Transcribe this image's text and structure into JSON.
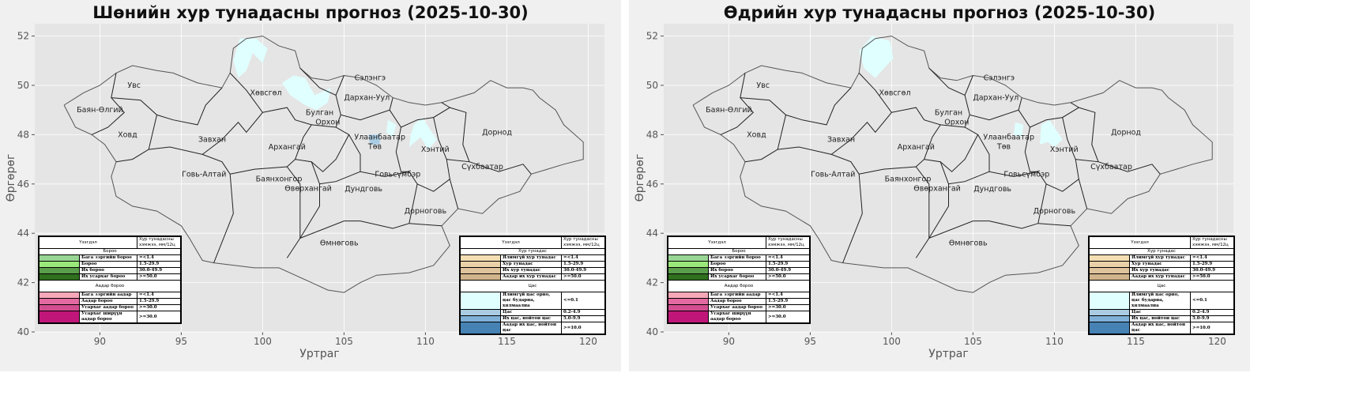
{
  "panels": [
    {
      "title": "Шөнийн хур тунадасны прогноз (2025-10-30)",
      "snow": [
        [
          [
            98.2,
            51.0
          ],
          [
            98.6,
            51.9
          ],
          [
            99.6,
            51.9
          ],
          [
            100.3,
            51.5
          ],
          [
            100.0,
            50.9
          ],
          [
            99.4,
            51.3
          ],
          [
            99.0,
            50.6
          ],
          [
            98.5,
            50.3
          ]
        ],
        [
          [
            101.2,
            50.1
          ],
          [
            101.9,
            50.4
          ],
          [
            102.6,
            50.3
          ],
          [
            103.2,
            49.6
          ],
          [
            104.2,
            49.9
          ],
          [
            104.0,
            49.3
          ],
          [
            103.3,
            49.0
          ],
          [
            102.6,
            49.2
          ],
          [
            101.7,
            49.6
          ]
        ],
        [
          [
            107.7,
            48.6
          ],
          [
            108.2,
            48.4
          ],
          [
            108.0,
            47.9
          ],
          [
            107.6,
            48.1
          ]
        ],
        [
          [
            109.3,
            48.4
          ],
          [
            109.8,
            48.7
          ],
          [
            110.7,
            47.8
          ],
          [
            110.2,
            47.4
          ],
          [
            109.7,
            47.9
          ],
          [
            109.0,
            47.5
          ],
          [
            109.1,
            48.0
          ]
        ]
      ],
      "ub": [
        [
          106.5,
          48.0
        ],
        [
          107.2,
          48.0
        ],
        [
          107.2,
          47.6
        ],
        [
          106.6,
          47.6
        ]
      ]
    },
    {
      "title": "Өдрийн хур тунадасны прогноз (2025-10-30)",
      "snow": [
        [
          [
            98.0,
            51.4
          ],
          [
            98.8,
            52.0
          ],
          [
            99.9,
            51.8
          ],
          [
            100.1,
            51.1
          ],
          [
            99.0,
            50.3
          ],
          [
            98.3,
            50.7
          ]
        ],
        [
          [
            107.6,
            48.5
          ],
          [
            108.1,
            48.4
          ],
          [
            108.0,
            47.9
          ],
          [
            107.5,
            48.0
          ]
        ],
        [
          [
            109.2,
            48.4
          ],
          [
            109.7,
            48.6
          ],
          [
            110.5,
            47.8
          ],
          [
            110.0,
            47.5
          ],
          [
            109.6,
            47.7
          ],
          [
            109.1,
            47.6
          ]
        ]
      ],
      "ub": []
    }
  ],
  "axes": {
    "xlabel": "Уртраг",
    "ylabel": "Өргөрөг",
    "xticks": [
      90,
      95,
      100,
      105,
      110,
      115,
      120
    ],
    "yticks": [
      40,
      42,
      44,
      46,
      48,
      50,
      52
    ],
    "xlim": [
      86,
      121
    ],
    "ylim": [
      40,
      52.5
    ]
  },
  "colors": {
    "land": "#e5e5e5",
    "snow": "#e0ffff",
    "border": "#222222",
    "grid": "#ffffff"
  },
  "provinces": [
    {
      "name": "Увс",
      "lon": 92.1,
      "lat": 50.0
    },
    {
      "name": "Баян-Өлгий",
      "lon": 90.0,
      "lat": 49.0
    },
    {
      "name": "Ховд",
      "lon": 91.7,
      "lat": 48.0
    },
    {
      "name": "Завхан",
      "lon": 96.9,
      "lat": 47.8
    },
    {
      "name": "Говь-Алтай",
      "lon": 96.4,
      "lat": 46.4
    },
    {
      "name": "Хөвсгөл",
      "lon": 100.2,
      "lat": 49.7
    },
    {
      "name": "Архангай",
      "lon": 101.5,
      "lat": 47.5
    },
    {
      "name": "Баянхонгор",
      "lon": 101.0,
      "lat": 46.2
    },
    {
      "name": "Өвөрхангай",
      "lon": 102.8,
      "lat": 46.3
    },
    {
      "name": "Булган",
      "lon": 103.5,
      "lat": 48.9
    },
    {
      "name": "Орхон",
      "lon": 104.0,
      "lat": 49.1
    },
    {
      "name": "Сэлэнгэ",
      "lon": 106.6,
      "lat": 50.3
    },
    {
      "name": "Дархан-Уул",
      "lon": 106.4,
      "lat": 49.5
    },
    {
      "name": "Улаанбаатар",
      "lon": 107.2,
      "lat": 47.9
    },
    {
      "name": "Төв",
      "lon": 106.9,
      "lat": 47.7
    },
    {
      "name": "Хэнтий",
      "lon": 110.6,
      "lat": 47.4
    },
    {
      "name": "Дорнод",
      "lon": 114.4,
      "lat": 48.1
    },
    {
      "name": "Сүхбаатар",
      "lon": 113.5,
      "lat": 46.7
    },
    {
      "name": "Говьсүмбэр",
      "lon": 108.3,
      "lat": 46.4
    },
    {
      "name": "Дундговь",
      "lon": 106.2,
      "lat": 45.8
    },
    {
      "name": "Дорноговь",
      "lon": 110.0,
      "lat": 44.9
    },
    {
      "name": "Өмнөговь",
      "lon": 104.7,
      "lat": 43.6
    }
  ],
  "legend_left": {
    "h1": "Үзэгдэл",
    "h2": "Хур тунадасны хэмжээ, мм/12ц",
    "sections": [
      {
        "title": "Бороо",
        "rows": [
          [
            "#98d594",
            "Бага зэргийн бороо",
            "=<1.4"
          ],
          [
            "#9be87a",
            "Бороо",
            "1.5-29.9"
          ],
          [
            "#5a9e4b",
            "Их бороо",
            "30.0-49.9"
          ],
          [
            "#2f6f1d",
            "Их усархаг бороо",
            ">=50.0"
          ]
        ]
      },
      {
        "title": "Аадар бороо",
        "rows": [
          [
            "#f7a8b8",
            "Бага зэргийн аадар",
            "=<1.4"
          ],
          [
            "#e26aa0",
            "Аадар бороо",
            "1.5-29.9"
          ],
          [
            "#d24d90",
            "Усархаг аадар бороо",
            ">=30.0"
          ],
          [
            "#c0167a",
            "Усархаг ширүүн аадар бороо",
            ">=30.0"
          ]
        ]
      }
    ]
  },
  "legend_right": {
    "h1": "Үзэгдэл",
    "h2": "Хур тунадасны хэмжээ, мм/12ц",
    "sections": [
      {
        "title": "Хур тунадас",
        "rows": [
          [
            "#f5deb3",
            "Ялимгүй хур тунадас",
            "=<1.4"
          ],
          [
            "#ead0a8",
            "Хур тунадас",
            "1.5-29.9"
          ],
          [
            "#dfc39c",
            "Их хур тунадас",
            "30.0-49.9"
          ],
          [
            "#d2b48c",
            "Аадар их хур тунадас",
            ">=50.0"
          ]
        ]
      },
      {
        "title": "Цас",
        "rows": [
          [
            "#e0ffff",
            "Ялимгүй цас орно, цас бударна, хялмаална",
            "<=0.1"
          ],
          [
            "#a9cce3",
            "Цас",
            "0.2-4.9"
          ],
          [
            "#7fb0d8",
            "Их цас, нойтон цас",
            "5.0-9.9"
          ],
          [
            "#4682b4",
            "Аадар их цас, нойтон цас",
            ">=10.0"
          ]
        ]
      }
    ]
  }
}
